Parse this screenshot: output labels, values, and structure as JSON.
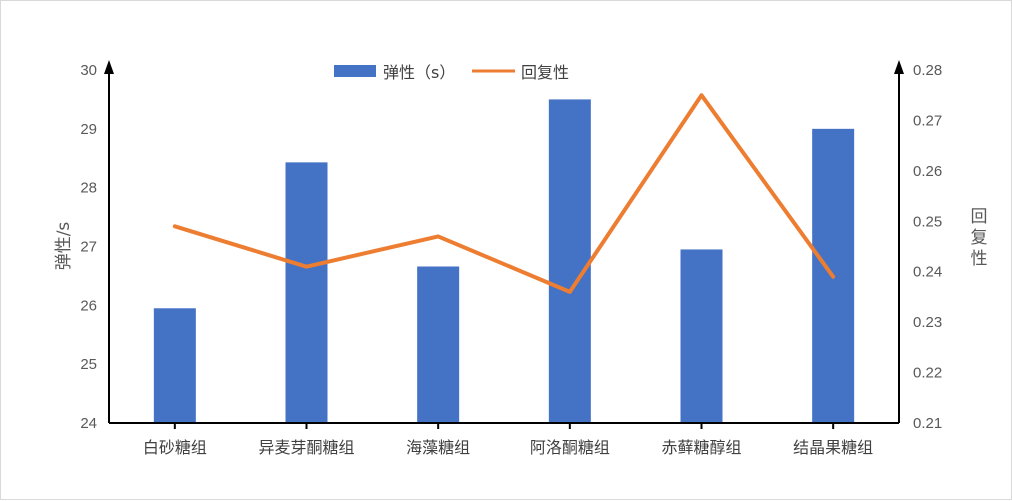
{
  "chart_data": {
    "type": "bar",
    "categories": [
      "白砂糖组",
      "异麦芽酮糖组",
      "海藻糖组",
      "阿洛酮糖组",
      "赤藓糖醇组",
      "结晶果糖组"
    ],
    "series": [
      {
        "name": "弹性（s）",
        "type": "bar",
        "axis": "left",
        "color": "#4472C4",
        "values": [
          25.95,
          28.43,
          26.66,
          29.5,
          26.95,
          29.0
        ]
      },
      {
        "name": "回复性",
        "type": "line",
        "axis": "right",
        "color": "#ED7D31",
        "values": [
          0.249,
          0.241,
          0.247,
          0.236,
          0.275,
          0.239
        ]
      }
    ],
    "ylabel": "弹性/s",
    "y2label": "回复性",
    "ylim": [
      24,
      30
    ],
    "y2lim": [
      0.21,
      0.28
    ],
    "yticks": [
      "24",
      "25",
      "26",
      "27",
      "28",
      "29",
      "30"
    ],
    "y2ticks": [
      "0.21",
      "0.22",
      "0.23",
      "0.24",
      "0.25",
      "0.26",
      "0.27",
      "0.28"
    ],
    "grid": false,
    "legend_position": "top-center"
  }
}
